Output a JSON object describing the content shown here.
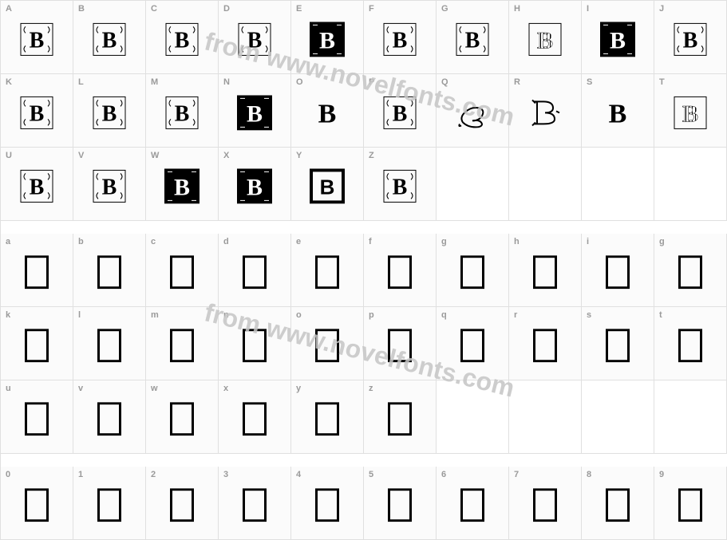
{
  "watermark_text": "from www.novelfonts.com",
  "rows": [
    {
      "type": "glyph",
      "labels": [
        "A",
        "B",
        "C",
        "D",
        "E",
        "F",
        "G",
        "H",
        "I",
        "J"
      ],
      "glyphs": [
        {
          "k": "deco"
        },
        {
          "k": "deco"
        },
        {
          "k": "deco"
        },
        {
          "k": "deco"
        },
        {
          "k": "block"
        },
        {
          "k": "deco"
        },
        {
          "k": "deco"
        },
        {
          "k": "strip"
        },
        {
          "k": "block"
        },
        {
          "k": "deco"
        }
      ]
    },
    {
      "type": "glyph",
      "labels": [
        "K",
        "L",
        "M",
        "N",
        "O",
        "P",
        "Q",
        "R",
        "S",
        "T"
      ],
      "glyphs": [
        {
          "k": "deco"
        },
        {
          "k": "deco"
        },
        {
          "k": "deco"
        },
        {
          "k": "block"
        },
        {
          "k": "plain"
        },
        {
          "k": "deco"
        },
        {
          "k": "script"
        },
        {
          "k": "outline"
        },
        {
          "k": "plain"
        },
        {
          "k": "strip"
        }
      ]
    },
    {
      "type": "glyph",
      "labels": [
        "U",
        "V",
        "W",
        "X",
        "Y",
        "Z",
        "",
        "",
        "",
        ""
      ],
      "glyphs": [
        {
          "k": "deco"
        },
        {
          "k": "deco"
        },
        {
          "k": "block"
        },
        {
          "k": "block"
        },
        {
          "k": "boxed"
        },
        {
          "k": "deco"
        },
        null,
        null,
        null,
        null
      ]
    },
    {
      "type": "gap"
    },
    {
      "type": "empty",
      "labels": [
        "a",
        "b",
        "c",
        "d",
        "e",
        "f",
        "g",
        "h",
        "i",
        "g"
      ]
    },
    {
      "type": "empty",
      "labels": [
        "k",
        "l",
        "m",
        "n",
        "o",
        "p",
        "q",
        "r",
        "s",
        "t"
      ]
    },
    {
      "type": "empty",
      "labels": [
        "u",
        "v",
        "w",
        "x",
        "y",
        "z",
        "",
        "",
        "",
        ""
      ]
    },
    {
      "type": "gap"
    },
    {
      "type": "empty",
      "labels": [
        "0",
        "1",
        "2",
        "3",
        "4",
        "5",
        "6",
        "7",
        "8",
        "9"
      ]
    }
  ],
  "colors": {
    "border": "#e0e0e0",
    "label": "#9a9a9a",
    "glyph": "#000000",
    "watermark": "#c5c5c5"
  }
}
